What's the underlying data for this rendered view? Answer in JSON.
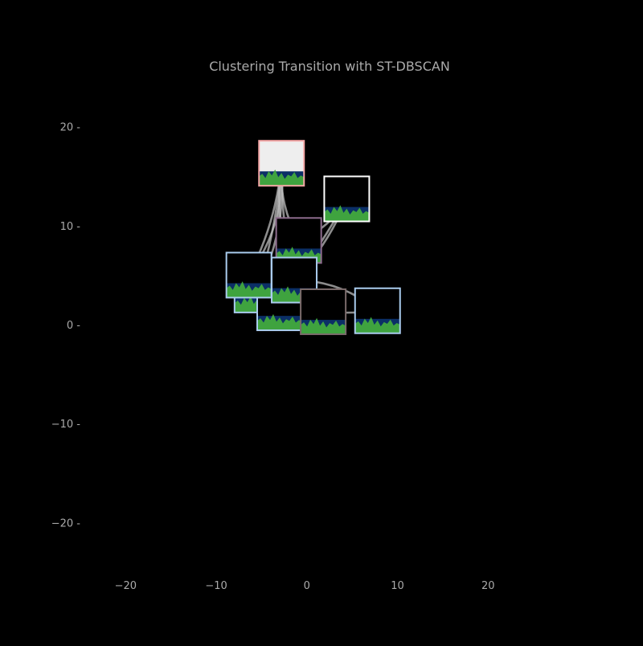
{
  "chart_data": {
    "type": "scatter",
    "title": "Clustering Transition with ST-DBSCAN",
    "xlabel": "",
    "ylabel": "",
    "xlim": [
      -25,
      30
    ],
    "ylim": [
      -25,
      25
    ],
    "xticks": [
      -20,
      -10,
      0,
      10,
      20
    ],
    "yticks": [
      20,
      10,
      0,
      -10,
      -20
    ],
    "xtick_labels": [
      "−20",
      "−10",
      "0",
      "10",
      "20"
    ],
    "ytick_labels": [
      "20 -",
      "10 -",
      "0 -",
      "−10 -",
      "−20 -"
    ],
    "grid": false,
    "legend": "none",
    "colors": {
      "background": "#000000",
      "text": "#aaaaaa",
      "edge": "#bbbbbb",
      "thumb_sky_default": "#000000",
      "thumb_sky_bright": "#eeeeee",
      "thumb_water": "#0b2f66",
      "thumb_land": "#3fa33f"
    },
    "nodes": [
      {
        "id": "n1",
        "x": -2.8,
        "y": 16.3,
        "border": "#f4a6a6",
        "sky": "bright"
      },
      {
        "id": "n2",
        "x": 4.4,
        "y": 12.7,
        "border": "#ffffff",
        "sky": "dark"
      },
      {
        "id": "n3",
        "x": -0.9,
        "y": 8.5,
        "border": "#8c6b8c",
        "sky": "dark"
      },
      {
        "id": "n4",
        "x": -5.5,
        "y": 3.5,
        "border": "#aaccee",
        "sky": "dark"
      },
      {
        "id": "n5",
        "x": -3.0,
        "y": 1.7,
        "border": "#aaccee",
        "sky": "dark"
      },
      {
        "id": "n6",
        "x": -6.4,
        "y": 5.0,
        "border": "#aaccee",
        "sky": "dark"
      },
      {
        "id": "n7",
        "x": -1.4,
        "y": 4.5,
        "border": "#aaccee",
        "sky": "dark"
      },
      {
        "id": "n8",
        "x": 1.8,
        "y": 1.3,
        "border": "#7a6a6a",
        "sky": "dark"
      },
      {
        "id": "n9",
        "x": 7.8,
        "y": 1.4,
        "border": "#aaccee",
        "sky": "dark"
      }
    ],
    "edges": [
      {
        "from": "n1",
        "to": "n6",
        "bend": -0.18
      },
      {
        "from": "n1",
        "to": "n6",
        "bend": -0.1
      },
      {
        "from": "n1",
        "to": "n4",
        "bend": -0.14
      },
      {
        "from": "n1",
        "to": "n4",
        "bend": -0.06
      },
      {
        "from": "n1",
        "to": "n7",
        "bend": 0.06
      },
      {
        "from": "n1",
        "to": "n7",
        "bend": 0.12
      },
      {
        "from": "n1",
        "to": "n3",
        "bend": 0.15
      },
      {
        "from": "n1",
        "to": "n5",
        "bend": 0.04
      },
      {
        "from": "n2",
        "to": "n3",
        "bend": -0.18
      },
      {
        "from": "n2",
        "to": "n7",
        "bend": -0.1
      },
      {
        "from": "n2",
        "to": "n7",
        "bend": -0.04
      },
      {
        "from": "n7",
        "to": "n9",
        "bend": -0.18
      },
      {
        "from": "n8",
        "to": "n9",
        "bend": 0.05
      },
      {
        "from": "n4",
        "to": "n8",
        "bend": 0.1
      }
    ]
  }
}
